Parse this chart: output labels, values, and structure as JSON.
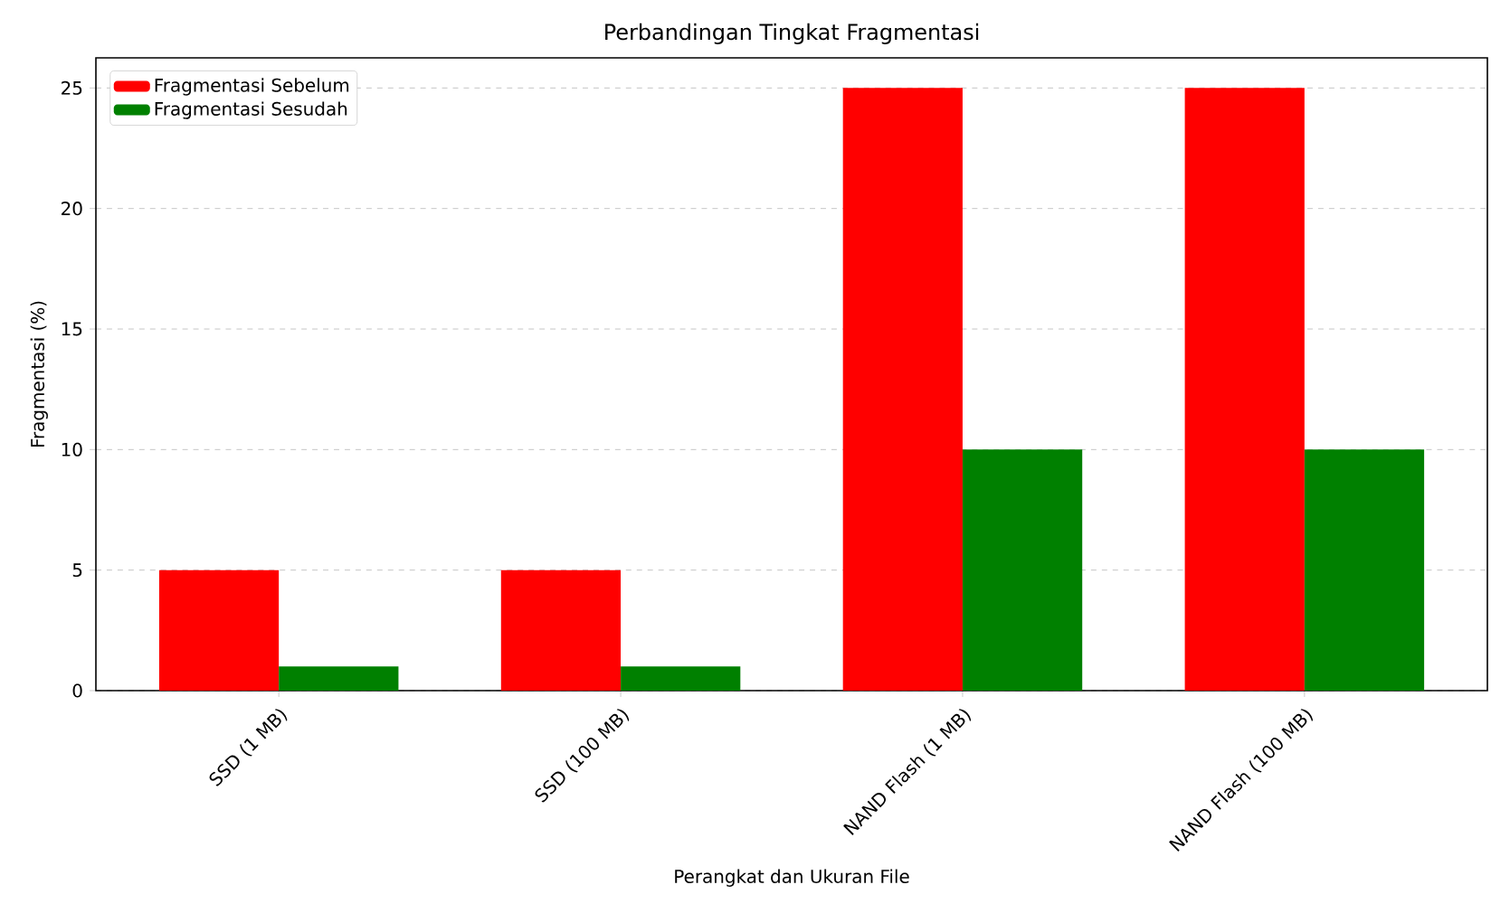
{
  "chart_data": {
    "type": "bar",
    "title": "Perbandingan Tingkat Fragmentasi",
    "xlabel": "Perangkat dan Ukuran File",
    "ylabel": "Fragmentasi (%)",
    "categories": [
      "SSD (1 MB)",
      "SSD (100 MB)",
      "NAND Flash (1 MB)",
      "NAND Flash (100 MB)"
    ],
    "series": [
      {
        "name": "Fragmentasi Sebelum",
        "color": "#ff0000",
        "values": [
          5,
          5,
          25,
          25
        ]
      },
      {
        "name": "Fragmentasi Sesudah",
        "color": "#008000",
        "values": [
          1,
          1,
          10,
          10
        ]
      }
    ],
    "ylim": [
      0,
      26.25
    ],
    "yticks": [
      0,
      5,
      10,
      15,
      20,
      25
    ],
    "grid": "y",
    "legend": "top left"
  }
}
